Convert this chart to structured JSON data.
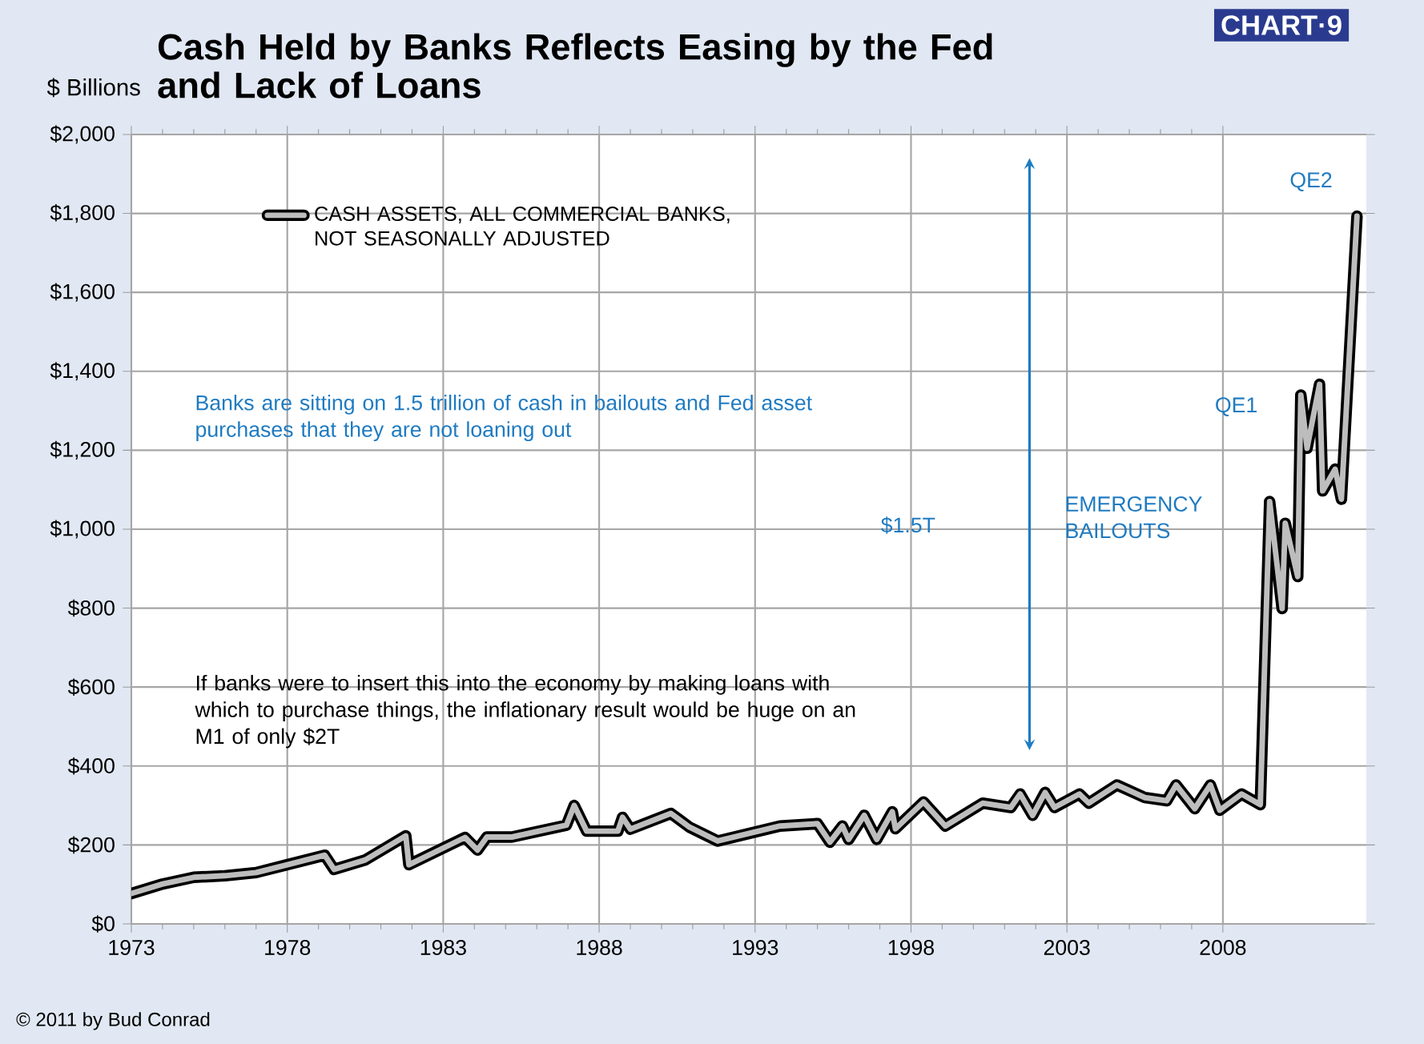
{
  "chart_data": {
    "type": "line",
    "title": "Cash Held by Banks Reflects Easing by the Fed and Lack of Loans",
    "ylabel": "$ Billions",
    "xlim": [
      1973,
      2012.6
    ],
    "xticks": [
      1973,
      1978,
      1983,
      1988,
      1993,
      1998,
      2003,
      2008
    ],
    "ylim": [
      0,
      2000
    ],
    "yticks": [
      {
        "value": 0,
        "label": "$0"
      },
      {
        "value": 200,
        "label": "$200"
      },
      {
        "value": 400,
        "label": "$400"
      },
      {
        "value": 600,
        "label": "$600"
      },
      {
        "value": 800,
        "label": "$800"
      },
      {
        "value": 1000,
        "label": "$1,000"
      },
      {
        "value": 1200,
        "label": "$1,200"
      },
      {
        "value": 1400,
        "label": "$1,400"
      },
      {
        "value": 1600,
        "label": "$1,600"
      },
      {
        "value": 1800,
        "label": "$1,800"
      },
      {
        "value": 2000,
        "label": "$2,000"
      }
    ],
    "grid": true,
    "legend": "top left",
    "marker": "none",
    "line_style": "solid",
    "series": [
      {
        "name": "CASH ASSETS, ALL COMMERCIAL BANKS, NOT SEASONALLY ADJUSTED",
        "color": "#bdbdbd",
        "x": [
          1973.0,
          1974.0,
          1975.0,
          1976.0,
          1977.0,
          1978.0,
          1979.2,
          1979.5,
          1980.5,
          1981.8,
          1981.9,
          1983.7,
          1984.1,
          1984.4,
          1985.2,
          1986.95,
          1987.2,
          1987.6,
          1988.6,
          1988.75,
          1989.0,
          1990.3,
          1990.9,
          1991.8,
          1993.8,
          1995.0,
          1995.4,
          1995.8,
          1996.0,
          1996.5,
          1996.9,
          1997.4,
          1997.5,
          1998.4,
          1999.1,
          2000.3,
          2001.2,
          2001.5,
          2001.9,
          2002.3,
          2002.6,
          2003.4,
          2003.7,
          2004.6,
          2005.5,
          2006.2,
          2006.5,
          2007.1,
          2007.6,
          2007.9,
          2008.6,
          2009.2,
          2009.5,
          2009.9,
          2010.0,
          2010.4,
          2010.5,
          2010.7,
          2011.1,
          2011.2,
          2011.6,
          2011.8,
          2012.3
        ],
        "values": [
          77,
          101,
          118,
          122,
          130,
          150,
          174,
          138,
          162,
          223,
          150,
          219,
          187,
          220,
          220,
          250,
          300,
          235,
          235,
          270,
          240,
          280,
          245,
          210,
          248,
          254,
          207,
          248,
          214,
          275,
          214,
          284,
          241,
          309,
          248,
          306,
          295,
          329,
          275,
          333,
          295,
          329,
          306,
          352,
          320,
          312,
          352,
          292,
          352,
          288,
          329,
          302,
          1070,
          799,
          1015,
          880,
          1340,
          1205,
          1367,
          1097,
          1152,
          1076,
          1793
        ]
      }
    ],
    "annotations": [
      "CHART·9",
      "Banks are sitting on 1.5 trillion of cash in bailouts and Fed asset purchases that they are not loaning out",
      "If banks were to insert this into the economy by making loans with which to purchase things, the inflationary result would be huge on an M1 of only $2T",
      "$1.5T",
      "EMERGENCY BAILOUTS",
      "QE1",
      "QE2",
      "© 2011 by Bud Conrad"
    ]
  }
}
